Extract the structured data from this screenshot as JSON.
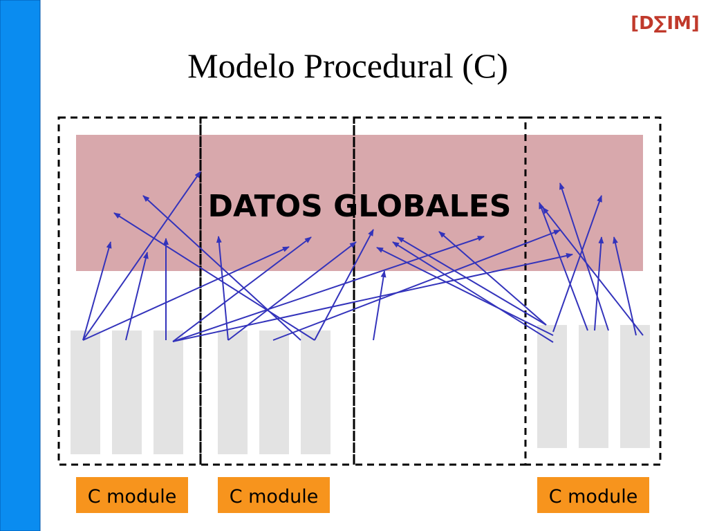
{
  "header": {
    "title": "Modelo Procedural (C)",
    "logo": "[D∑IM]"
  },
  "globals": {
    "label": "DATOS GLOBALES"
  },
  "modules": [
    {
      "label": "C module"
    },
    {
      "label": "C module"
    },
    {
      "label": "C module"
    }
  ]
}
